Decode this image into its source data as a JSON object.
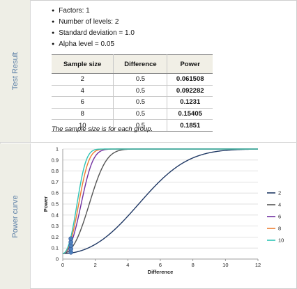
{
  "test_result": {
    "label": "Test Result",
    "facts": [
      "Factors: 1",
      "Number of levels: 2",
      "Standard deviation = 1.0",
      "Alpha level = 0.05"
    ],
    "table": {
      "headers": [
        "Sample size",
        "Difference",
        "Power"
      ],
      "rows": [
        [
          "2",
          "0.5",
          "0.061508"
        ],
        [
          "4",
          "0.5",
          "0.092282"
        ],
        [
          "6",
          "0.5",
          "0.1231"
        ],
        [
          "8",
          "0.5",
          "0.15405"
        ],
        [
          "10",
          "0.5",
          "0.1851"
        ]
      ]
    },
    "note": "The sample size is for each group."
  },
  "power_curve": {
    "label": "Power curve"
  },
  "chart_data": {
    "type": "line",
    "xlabel": "Difference",
    "ylabel": "Power",
    "xlim": [
      0,
      12
    ],
    "ylim": [
      0,
      1
    ],
    "x_ticks": [
      "0",
      "2",
      "4",
      "6",
      "8",
      "10",
      "12"
    ],
    "y_ticks": [
      "0",
      "0.1",
      "0.2",
      "0.3",
      "0.4",
      "0.5",
      "0.6",
      "0.7",
      "0.8",
      "0.9",
      "1"
    ],
    "legend_position": "right",
    "series": [
      {
        "name": "2",
        "sample_size": 2,
        "color": "#1f3864"
      },
      {
        "name": "4",
        "sample_size": 4,
        "color": "#555555"
      },
      {
        "name": "6",
        "sample_size": 6,
        "color": "#7030a0"
      },
      {
        "name": "8",
        "sample_size": 8,
        "color": "#ed7d31"
      },
      {
        "name": "10",
        "sample_size": 10,
        "color": "#2ec4b6"
      }
    ],
    "markers": {
      "color": "#4f81bd",
      "points": [
        {
          "x": 0.5,
          "y": 0.061508
        },
        {
          "x": 0.5,
          "y": 0.092282
        },
        {
          "x": 0.5,
          "y": 0.1231
        },
        {
          "x": 0.5,
          "y": 0.15405
        },
        {
          "x": 0.5,
          "y": 0.1851
        }
      ]
    }
  }
}
